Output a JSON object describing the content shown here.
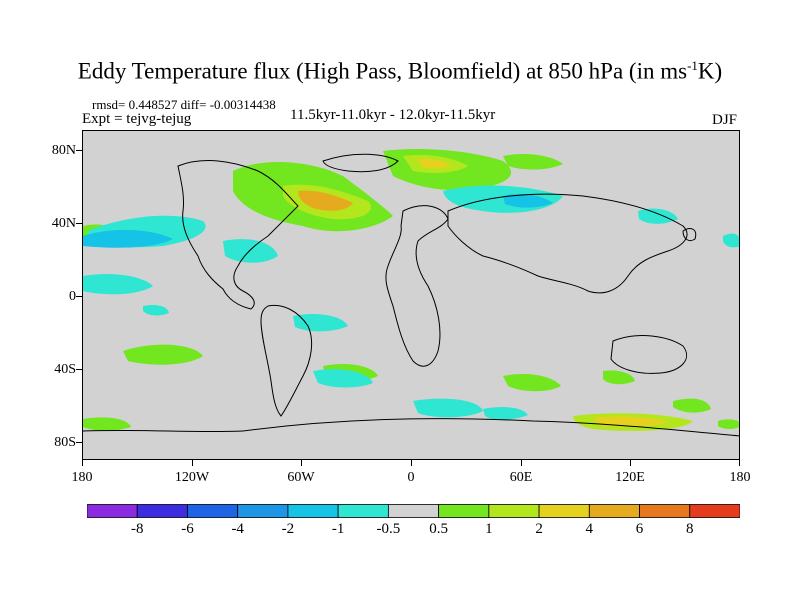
{
  "title": {
    "main": "Eddy Temperature flux (High Pass, Bloomfield) at 850 hPa (in ms",
    "sup": "-1",
    "end": "K)"
  },
  "stats_line": "rmsd= 0.448527 diff= -0.00314438",
  "expt_line": "Expt = tejvg-tejug",
  "period_line": "11.5kyr-11.0kyr - 12.0kyr-11.5kyr",
  "season": "DJF",
  "lat_labels": [
    "80N",
    "40N",
    "0",
    "40S",
    "80S"
  ],
  "lon_labels": [
    "180",
    "120W",
    "60W",
    "0",
    "60E",
    "120E",
    "180"
  ],
  "colorbar": {
    "colors": [
      "#8a2be2",
      "#3c2ee0",
      "#1e64e6",
      "#1e96e6",
      "#14c3e6",
      "#2ee6d2",
      "#d2d2d2",
      "#72e61e",
      "#b4e61e",
      "#e6d21e",
      "#e6aa1e",
      "#e6781e",
      "#e63c1e"
    ],
    "labels": [
      "-8",
      "-6",
      "-4",
      "-2",
      "-1",
      "-0.5",
      "0.5",
      "1",
      "2",
      "4",
      "6",
      "8"
    ]
  },
  "colors": {
    "land_background": "#d2d2d2",
    "coastline": "#000000"
  }
}
